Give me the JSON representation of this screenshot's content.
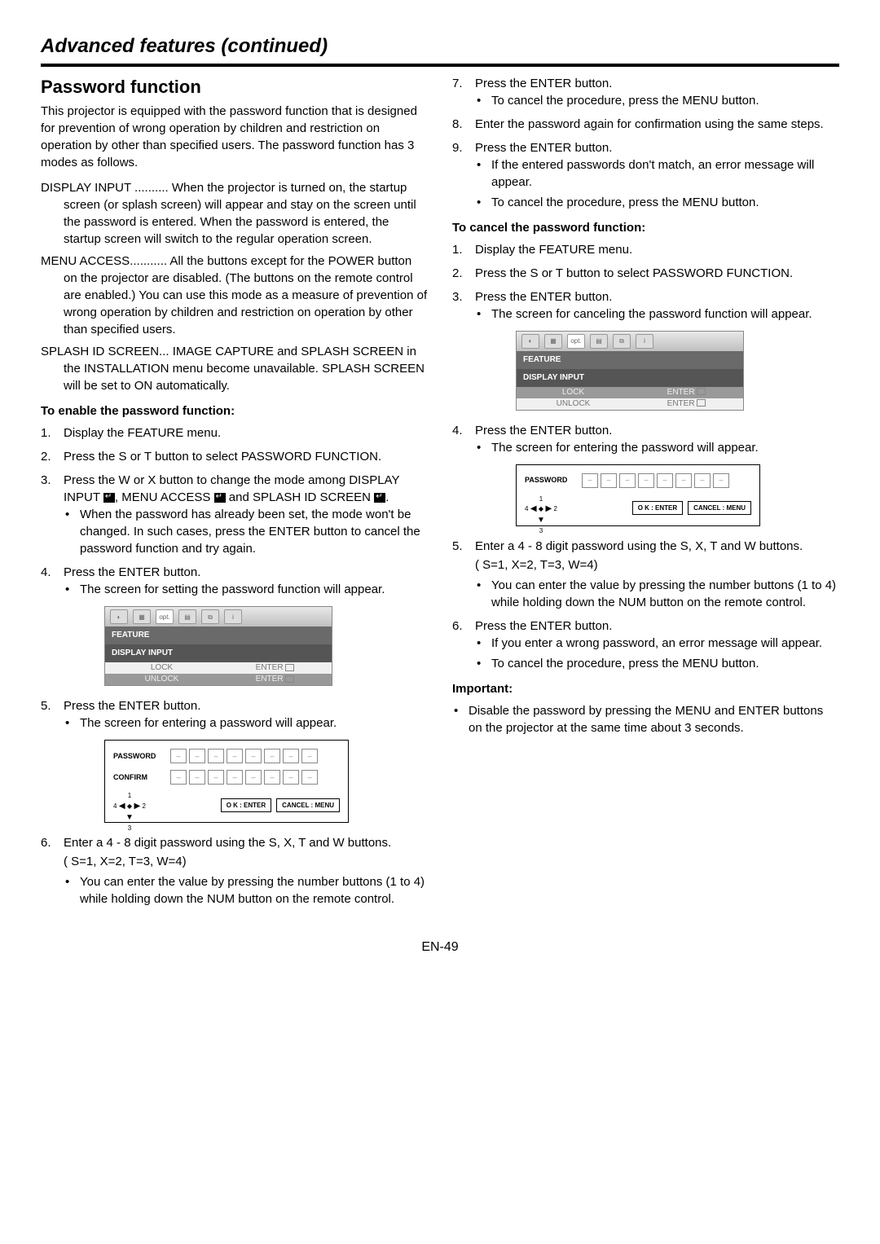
{
  "header": "Advanced features (continued)",
  "section_title": "Password function",
  "intro": "This projector is equipped with the password function that is designed for prevention of wrong operation by children and restriction on operation by other than specified users. The password function has 3 modes as follows.",
  "modes": {
    "display_input": {
      "label": "DISPLAY INPUT ..........",
      "text": " When the projector is turned on, the startup screen (or splash screen) will appear and stay on the screen until the password is entered. When the password is entered, the startup screen will switch to the regular operation screen."
    },
    "menu_access": {
      "label": "MENU ACCESS...........",
      "text": " All the buttons except for the POWER button on the projector are disabled. (The buttons on the remote control are enabled.) You can use this mode as a measure of prevention of wrong operation by children and restriction on operation by other than specified users."
    },
    "splash_id": {
      "label": "SPLASH ID SCREEN...",
      "text": " IMAGE CAPTURE and SPLASH SCREEN in the INSTALLATION menu become unavailable. SPLASH SCREEN will be set to ON automatically."
    }
  },
  "enable_heading": "To enable the password function:",
  "enable_steps": {
    "s1": "Display the FEATURE menu.",
    "s2": "Press the S or T button to select PASSWORD FUNCTION.",
    "s3_pre": "Press the W or X button to change the mode among DISPLAY INPUT ",
    "s3_mid": ", MENU ACCESS ",
    "s3_post": " and SPLASH ID SCREEN ",
    "s3_end": ".",
    "s3_bullet": "When the password has already been set, the mode won't be changed. In such cases, press the ENTER button to cancel the password function and try again.",
    "s4": "Press the ENTER button.",
    "s4_bullet": "The screen for setting the password function will appear.",
    "s5": "Press the ENTER button.",
    "s5_bullet": "The screen for entering a password will appear.",
    "s6": "Enter a 4 - 8 digit password using the S, X, T and W buttons.",
    "s6_map": "( S=1, X=2, T=3, W=4)",
    "s6_bullet": "You can enter the value by pressing the number buttons (1 to 4) while holding down the NUM button on the remote control."
  },
  "right_steps": {
    "s7": "Press the ENTER button.",
    "s7_bullet": "To cancel the procedure, press the MENU button.",
    "s8": "Enter the password again for confirmation using the same steps.",
    "s9": "Press the ENTER button.",
    "s9_b1": "If the entered passwords don't match, an error message will appear.",
    "s9_b2": "To cancel the procedure, press the MENU button."
  },
  "cancel_heading": "To cancel the password function:",
  "cancel_steps": {
    "s1": "Display the FEATURE menu.",
    "s2": "Press the S or T button to select PASSWORD FUNCTION.",
    "s3": "Press the ENTER button.",
    "s3_bullet": "The screen for canceling the password function will appear.",
    "s4": "Press the ENTER button.",
    "s4_bullet": "The screen for entering the password will appear.",
    "s5": "Enter a 4 - 8 digit password using the S, X, T and W buttons.",
    "s5_map": "( S=1, X=2, T=3, W=4)",
    "s5_bullet": "You can enter the value by pressing the number buttons (1 to 4) while holding down the NUM button on the remote control.",
    "s6": "Press the ENTER button.",
    "s6_b1": "If you enter a wrong password, an error message will appear.",
    "s6_b2": "To cancel the procedure, press the MENU button."
  },
  "important_heading": "Important:",
  "important_bullet": "Disable the password by pressing the MENU and ENTER buttons on the projector at the same time about 3 seconds.",
  "menu": {
    "feature": "FEATURE",
    "display_input": "DISPLAY INPUT",
    "lock": "LOCK",
    "unlock": "UNLOCK",
    "enter": "ENTER",
    "opt_label": "opt."
  },
  "pwd": {
    "password": "PASSWORD",
    "confirm": "CONFIRM",
    "ok": "O K : ENTER",
    "cancel": "CANCEL : MENU",
    "n1": "1",
    "n2": "2",
    "n3": "3",
    "n4": "4"
  },
  "page_num": "EN-49"
}
